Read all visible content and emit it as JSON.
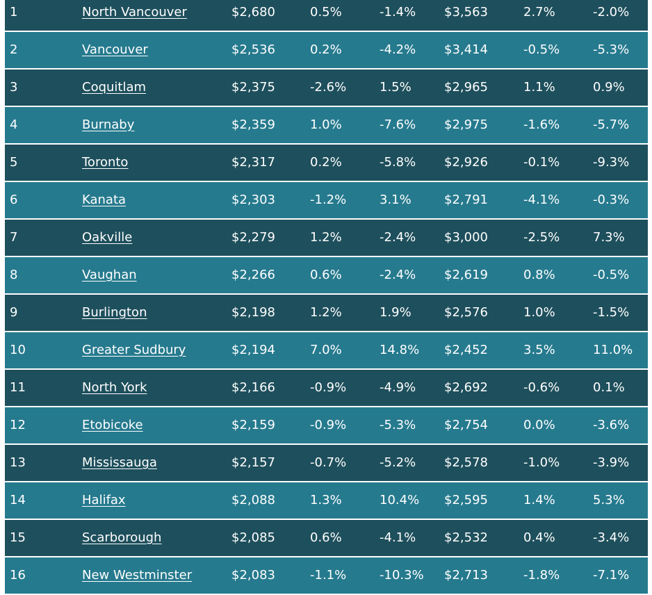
{
  "table": {
    "rows": [
      {
        "rank": "1",
        "city": "North Vancouver",
        "rent1": "$2,680",
        "mom1": "0.5%",
        "yoy1": "-1.4%",
        "rent2": "$3,563",
        "mom2": "2.7%",
        "yoy2": "-2.0%"
      },
      {
        "rank": "2",
        "city": "Vancouver",
        "rent1": "$2,536",
        "mom1": "0.2%",
        "yoy1": "-4.2%",
        "rent2": "$3,414",
        "mom2": "-0.5%",
        "yoy2": "-5.3%"
      },
      {
        "rank": "3",
        "city": "Coquitlam",
        "rent1": "$2,375",
        "mom1": "-2.6%",
        "yoy1": "1.5%",
        "rent2": "$2,965",
        "mom2": "1.1%",
        "yoy2": "0.9%"
      },
      {
        "rank": "4",
        "city": "Burnaby",
        "rent1": "$2,359",
        "mom1": "1.0%",
        "yoy1": "-7.6%",
        "rent2": "$2,975",
        "mom2": "-1.6%",
        "yoy2": "-5.7%"
      },
      {
        "rank": "5",
        "city": "Toronto",
        "rent1": "$2,317",
        "mom1": "0.2%",
        "yoy1": "-5.8%",
        "rent2": "$2,926",
        "mom2": "-0.1%",
        "yoy2": "-9.3%"
      },
      {
        "rank": "6",
        "city": "Kanata",
        "rent1": "$2,303",
        "mom1": "-1.2%",
        "yoy1": "3.1%",
        "rent2": "$2,791",
        "mom2": "-4.1%",
        "yoy2": "-0.3%"
      },
      {
        "rank": "7",
        "city": "Oakville",
        "rent1": "$2,279",
        "mom1": "1.2%",
        "yoy1": "-2.4%",
        "rent2": "$3,000",
        "mom2": "-2.5%",
        "yoy2": "7.3%"
      },
      {
        "rank": "8",
        "city": "Vaughan",
        "rent1": "$2,266",
        "mom1": "0.6%",
        "yoy1": "-2.4%",
        "rent2": "$2,619",
        "mom2": "0.8%",
        "yoy2": "-0.5%"
      },
      {
        "rank": "9",
        "city": "Burlington",
        "rent1": "$2,198",
        "mom1": "1.2%",
        "yoy1": "1.9%",
        "rent2": "$2,576",
        "mom2": "1.0%",
        "yoy2": "-1.5%"
      },
      {
        "rank": "10",
        "city": "Greater Sudbury",
        "rent1": "$2,194",
        "mom1": "7.0%",
        "yoy1": "14.8%",
        "rent2": "$2,452",
        "mom2": "3.5%",
        "yoy2": "11.0%"
      },
      {
        "rank": "11",
        "city": "North York",
        "rent1": "$2,166",
        "mom1": "-0.9%",
        "yoy1": "-4.9%",
        "rent2": "$2,692",
        "mom2": "-0.6%",
        "yoy2": "0.1%"
      },
      {
        "rank": "12",
        "city": "Etobicoke",
        "rent1": "$2,159",
        "mom1": "-0.9%",
        "yoy1": "-5.3%",
        "rent2": "$2,754",
        "mom2": "0.0%",
        "yoy2": "-3.6%"
      },
      {
        "rank": "13",
        "city": "Mississauga",
        "rent1": "$2,157",
        "mom1": "-0.7%",
        "yoy1": "-5.2%",
        "rent2": "$2,578",
        "mom2": "-1.0%",
        "yoy2": "-3.9%"
      },
      {
        "rank": "14",
        "city": "Halifax",
        "rent1": "$2,088",
        "mom1": "1.3%",
        "yoy1": "10.4%",
        "rent2": "$2,595",
        "mom2": "1.4%",
        "yoy2": "5.3%"
      },
      {
        "rank": "15",
        "city": "Scarborough",
        "rent1": "$2,085",
        "mom1": "0.6%",
        "yoy1": "-4.1%",
        "rent2": "$2,532",
        "mom2": "0.4%",
        "yoy2": "-3.4%"
      },
      {
        "rank": "16",
        "city": "New Westminster",
        "rent1": "$2,083",
        "mom1": "-1.1%",
        "yoy1": "-10.3%",
        "rent2": "$2,713",
        "mom2": "-1.8%",
        "yoy2": "-7.1%"
      }
    ]
  },
  "colors": {
    "row_dark": "#1e4f5c",
    "row_light": "#267a8e",
    "text": "#ffffff"
  }
}
